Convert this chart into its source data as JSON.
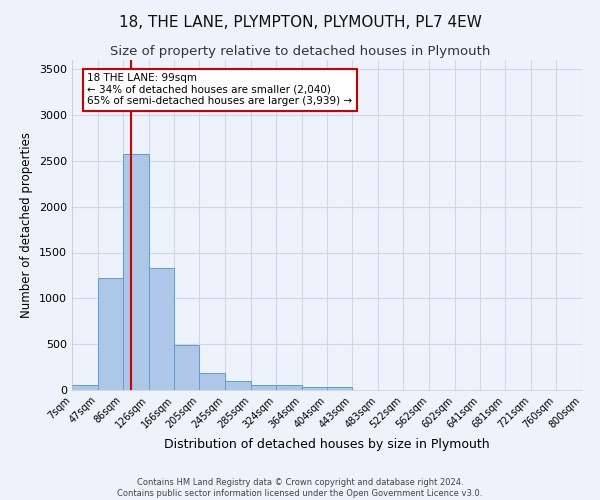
{
  "title": "18, THE LANE, PLYMPTON, PLYMOUTH, PL7 4EW",
  "subtitle": "Size of property relative to detached houses in Plymouth",
  "xlabel": "Distribution of detached houses by size in Plymouth",
  "ylabel": "Number of detached properties",
  "footer_line1": "Contains HM Land Registry data © Crown copyright and database right 2024.",
  "footer_line2": "Contains public sector information licensed under the Open Government Licence v3.0.",
  "bin_edges": [
    7,
    47,
    86,
    126,
    166,
    205,
    245,
    285,
    324,
    364,
    404,
    443,
    483,
    522,
    562,
    602,
    641,
    681,
    721,
    760,
    800
  ],
  "bin_labels": [
    "7sqm",
    "47sqm",
    "86sqm",
    "126sqm",
    "166sqm",
    "205sqm",
    "245sqm",
    "285sqm",
    "324sqm",
    "364sqm",
    "404sqm",
    "443sqm",
    "483sqm",
    "522sqm",
    "562sqm",
    "602sqm",
    "641sqm",
    "681sqm",
    "721sqm",
    "760sqm",
    "800sqm"
  ],
  "bar_heights": [
    50,
    1220,
    2580,
    1330,
    490,
    185,
    95,
    50,
    50,
    35,
    35,
    0,
    0,
    0,
    0,
    0,
    0,
    0,
    0,
    0
  ],
  "bar_color": "#aec6e8",
  "bar_edge_color": "#5a9fd4",
  "grid_color": "#d0d8e8",
  "background_color": "#eef2fa",
  "vline_x": 99,
  "vline_color": "#cc0000",
  "ylim": [
    0,
    3600
  ],
  "yticks": [
    0,
    500,
    1000,
    1500,
    2000,
    2500,
    3000,
    3500
  ],
  "annotation_text": "18 THE LANE: 99sqm\n← 34% of detached houses are smaller (2,040)\n65% of semi-detached houses are larger (3,939) →",
  "annotation_box_color": "#ffffff",
  "annotation_border_color": "#cc0000",
  "annotation_fontsize": 7.5,
  "title_fontsize": 11,
  "subtitle_fontsize": 9.5,
  "xlabel_fontsize": 9,
  "ylabel_fontsize": 8.5,
  "tick_fontsize": 7,
  "ytick_fontsize": 8
}
